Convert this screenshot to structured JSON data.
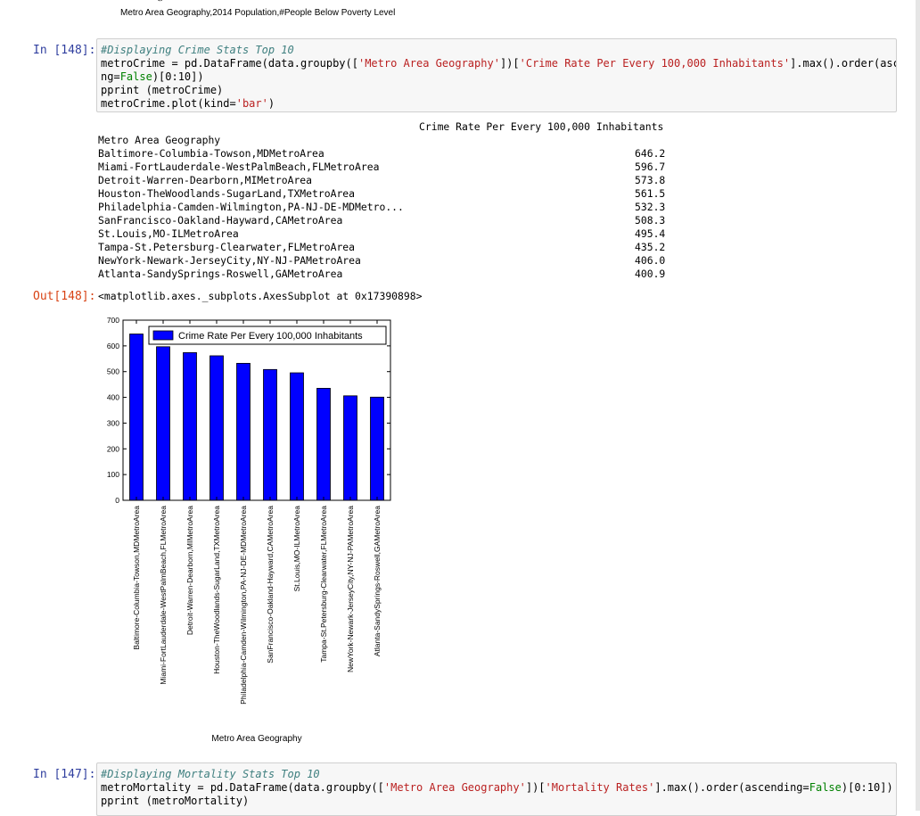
{
  "top_cell": {
    "glyph": "ℰ",
    "xlabel": "Metro Area Geography,2014 Population,#People Below Poverty Level"
  },
  "cell_148": {
    "in_prompt": "In [148]:",
    "code_line1": "#Displaying Crime Stats Top 10",
    "code_line2_a": "metroCrime = pd.DataFrame(data.groupby([",
    "code_line2_b": "'Metro Area Geography'",
    "code_line2_c": "])[",
    "code_line2_d": "'Crime Rate Per Every 100,000 Inhabitants'",
    "code_line2_e": "].max().order(ascendi",
    "code_line3_a": "ng=",
    "code_line3_b": "False",
    "code_line3_c": ")[0:10])",
    "code_line4": "pprint (metroCrime)",
    "code_line5_a": "metroCrime.plot(kind=",
    "code_line5_b": "'bar'",
    "code_line5_c": ")",
    "out_prompt": "Out[148]:",
    "table_header": "Crime Rate Per Every 100,000 Inhabitants",
    "table_index_name": "Metro Area Geography",
    "rows": [
      {
        "name": "Baltimore-Columbia-Towson,MDMetroArea",
        "value": "646.2"
      },
      {
        "name": "Miami-FortLauderdale-WestPalmBeach,FLMetroArea",
        "value": "596.7"
      },
      {
        "name": "Detroit-Warren-Dearborn,MIMetroArea",
        "value": "573.8"
      },
      {
        "name": "Houston-TheWoodlands-SugarLand,TXMetroArea",
        "value": "561.5"
      },
      {
        "name": "Philadelphia-Camden-Wilmington,PA-NJ-DE-MDMetro...",
        "value": "532.3"
      },
      {
        "name": "SanFrancisco-Oakland-Hayward,CAMetroArea",
        "value": "508.3"
      },
      {
        "name": "St.Louis,MO-ILMetroArea",
        "value": "495.4"
      },
      {
        "name": "Tampa-St.Petersburg-Clearwater,FLMetroArea",
        "value": "435.2"
      },
      {
        "name": "NewYork-Newark-JerseyCity,NY-NJ-PAMetroArea",
        "value": "406.0"
      },
      {
        "name": "Atlanta-SandySprings-Roswell,GAMetroArea",
        "value": "400.9"
      }
    ],
    "axes_repr": "<matplotlib.axes._subplots.AxesSubplot at 0x17390898>"
  },
  "chart_data": {
    "type": "bar",
    "categories": [
      "Baltimore-Columbia-Towson,MDMetroArea",
      "Miami-FortLauderdale-WestPalmBeach,FLMetroArea",
      "Detroit-Warren-Dearborn,MIMetroArea",
      "Houston-TheWoodlands-SugarLand,TXMetroArea",
      "Philadelphia-Camden-Wilmington,PA-NJ-DE-MDMetroArea",
      "SanFrancisco-Oakland-Hayward,CAMetroArea",
      "St.Louis,MO-ILMetroArea",
      "Tampa-St.Petersburg-Clearwater,FLMetroArea",
      "NewYork-Newark-JerseyCity,NY-NJ-PAMetroArea",
      "Atlanta-SandySprings-Roswell,GAMetroArea"
    ],
    "series": [
      {
        "name": "Crime Rate Per Every 100,000 Inhabitants",
        "values": [
          646.2,
          596.7,
          573.8,
          561.5,
          532.3,
          508.3,
          495.4,
          435.2,
          406.0,
          400.9
        ]
      }
    ],
    "xlabel": "Metro Area Geography",
    "ylabel": "",
    "ylim": [
      0,
      700
    ],
    "yticks": [
      0,
      100,
      200,
      300,
      400,
      500,
      600,
      700
    ],
    "legend_position": "top-right",
    "bar_color": "#0000ff",
    "grid": false
  },
  "cell_147": {
    "in_prompt": "In [147]:",
    "code_line1": "#Displaying Mortality Stats Top 10",
    "code_line2_a": "metroMortality = pd.DataFrame(data.groupby([",
    "code_line2_b": "'Metro Area Geography'",
    "code_line2_c": "])[",
    "code_line2_d": "'Mortality Rates'",
    "code_line2_e": "].max().order(ascending=",
    "code_line2_f": "False",
    "code_line2_g": ")[0:10])",
    "code_line3": "pprint (metroMortality)"
  }
}
